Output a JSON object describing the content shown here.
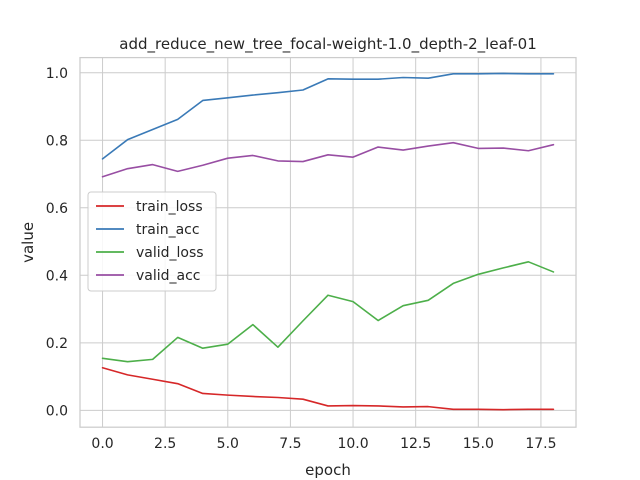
{
  "chart_data": {
    "type": "line",
    "title": "add_reduce_new_tree_focal-weight-1.0_depth-2_leaf-01",
    "xlabel": "epoch",
    "ylabel": "value",
    "xlim": [
      -0.9,
      18.9
    ],
    "ylim": [
      -0.05,
      1.045
    ],
    "xticks": [
      0,
      2.5,
      5,
      7.5,
      10,
      12.5,
      15,
      17.5
    ],
    "xtick_labels": [
      "0.0",
      "2.5",
      "5.0",
      "7.5",
      "10.0",
      "12.5",
      "15.0",
      "17.5"
    ],
    "yticks": [
      0.0,
      0.2,
      0.4,
      0.6,
      0.8,
      1.0
    ],
    "ytick_labels": [
      "0.0",
      "0.2",
      "0.4",
      "0.6",
      "0.8",
      "1.0"
    ],
    "grid": true,
    "legend_placement": "center-left",
    "x": [
      0,
      1,
      2,
      3,
      4,
      5,
      6,
      7,
      8,
      9,
      10,
      11,
      12,
      13,
      14,
      15,
      16,
      17,
      18
    ],
    "series": [
      {
        "name": "train_loss",
        "color": "#d62728",
        "values": [
          0.126,
          0.105,
          0.092,
          0.079,
          0.05,
          0.045,
          0.041,
          0.038,
          0.033,
          0.013,
          0.014,
          0.013,
          0.01,
          0.011,
          0.003,
          0.003,
          0.002,
          0.003,
          0.003
        ]
      },
      {
        "name": "train_acc",
        "color": "#3a7ab7",
        "values": [
          0.745,
          0.802,
          0.832,
          0.862,
          0.918,
          0.926,
          0.934,
          0.941,
          0.949,
          0.982,
          0.981,
          0.981,
          0.986,
          0.984,
          0.997,
          0.997,
          0.998,
          0.997,
          0.997
        ]
      },
      {
        "name": "valid_loss",
        "color": "#4daf4a",
        "values": [
          0.154,
          0.144,
          0.151,
          0.216,
          0.184,
          0.196,
          0.254,
          0.187,
          0.265,
          0.341,
          0.322,
          0.266,
          0.31,
          0.326,
          0.376,
          0.403,
          0.422,
          0.44,
          0.41
        ]
      },
      {
        "name": "valid_acc",
        "color": "#984ea3",
        "values": [
          0.692,
          0.716,
          0.728,
          0.708,
          0.726,
          0.747,
          0.755,
          0.739,
          0.737,
          0.757,
          0.75,
          0.78,
          0.771,
          0.783,
          0.793,
          0.776,
          0.777,
          0.769,
          0.787
        ]
      }
    ]
  }
}
